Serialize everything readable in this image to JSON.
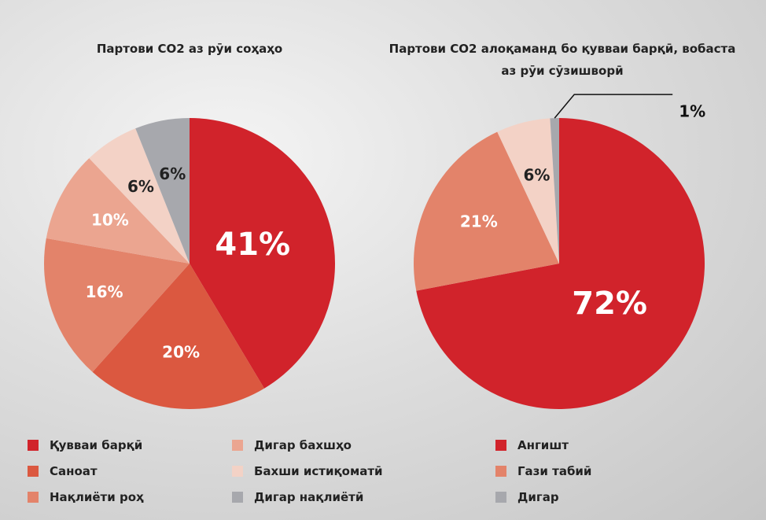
{
  "chart_data": [
    {
      "type": "pie",
      "title": "Партови CO2 аз рӯи соҳаҳо",
      "categories": [
        "Қувваи барқӣ",
        "Саноат",
        "Нақлиёти роҳ",
        "Дигар бахшҳо",
        "Бахши истиқоматӣ",
        "Дигар нақлиётӣ"
      ],
      "values": [
        41,
        20,
        16,
        10,
        6,
        6
      ],
      "value_labels": [
        "41%",
        "20%",
        "16%",
        "10%",
        "6%",
        "6%"
      ],
      "colors": [
        "#d1232b",
        "#db5840",
        "#e3836a",
        "#eba590",
        "#f3d2c6",
        "#a7a8ad"
      ]
    },
    {
      "type": "pie",
      "title": "Партови CO2 алоқаманд бо қувваи барқӣ, вобаста аз рӯи сӯзишворӣ",
      "categories": [
        "Ангишт",
        "Гази табиӣ",
        null,
        "Дигар"
      ],
      "values": [
        72,
        21,
        6,
        1
      ],
      "value_labels": [
        "72%",
        "21%",
        "6%",
        "1%"
      ],
      "colors": [
        "#d1232b",
        "#e3836a",
        "#f3d2c6",
        "#a7a8ad"
      ]
    }
  ]
}
